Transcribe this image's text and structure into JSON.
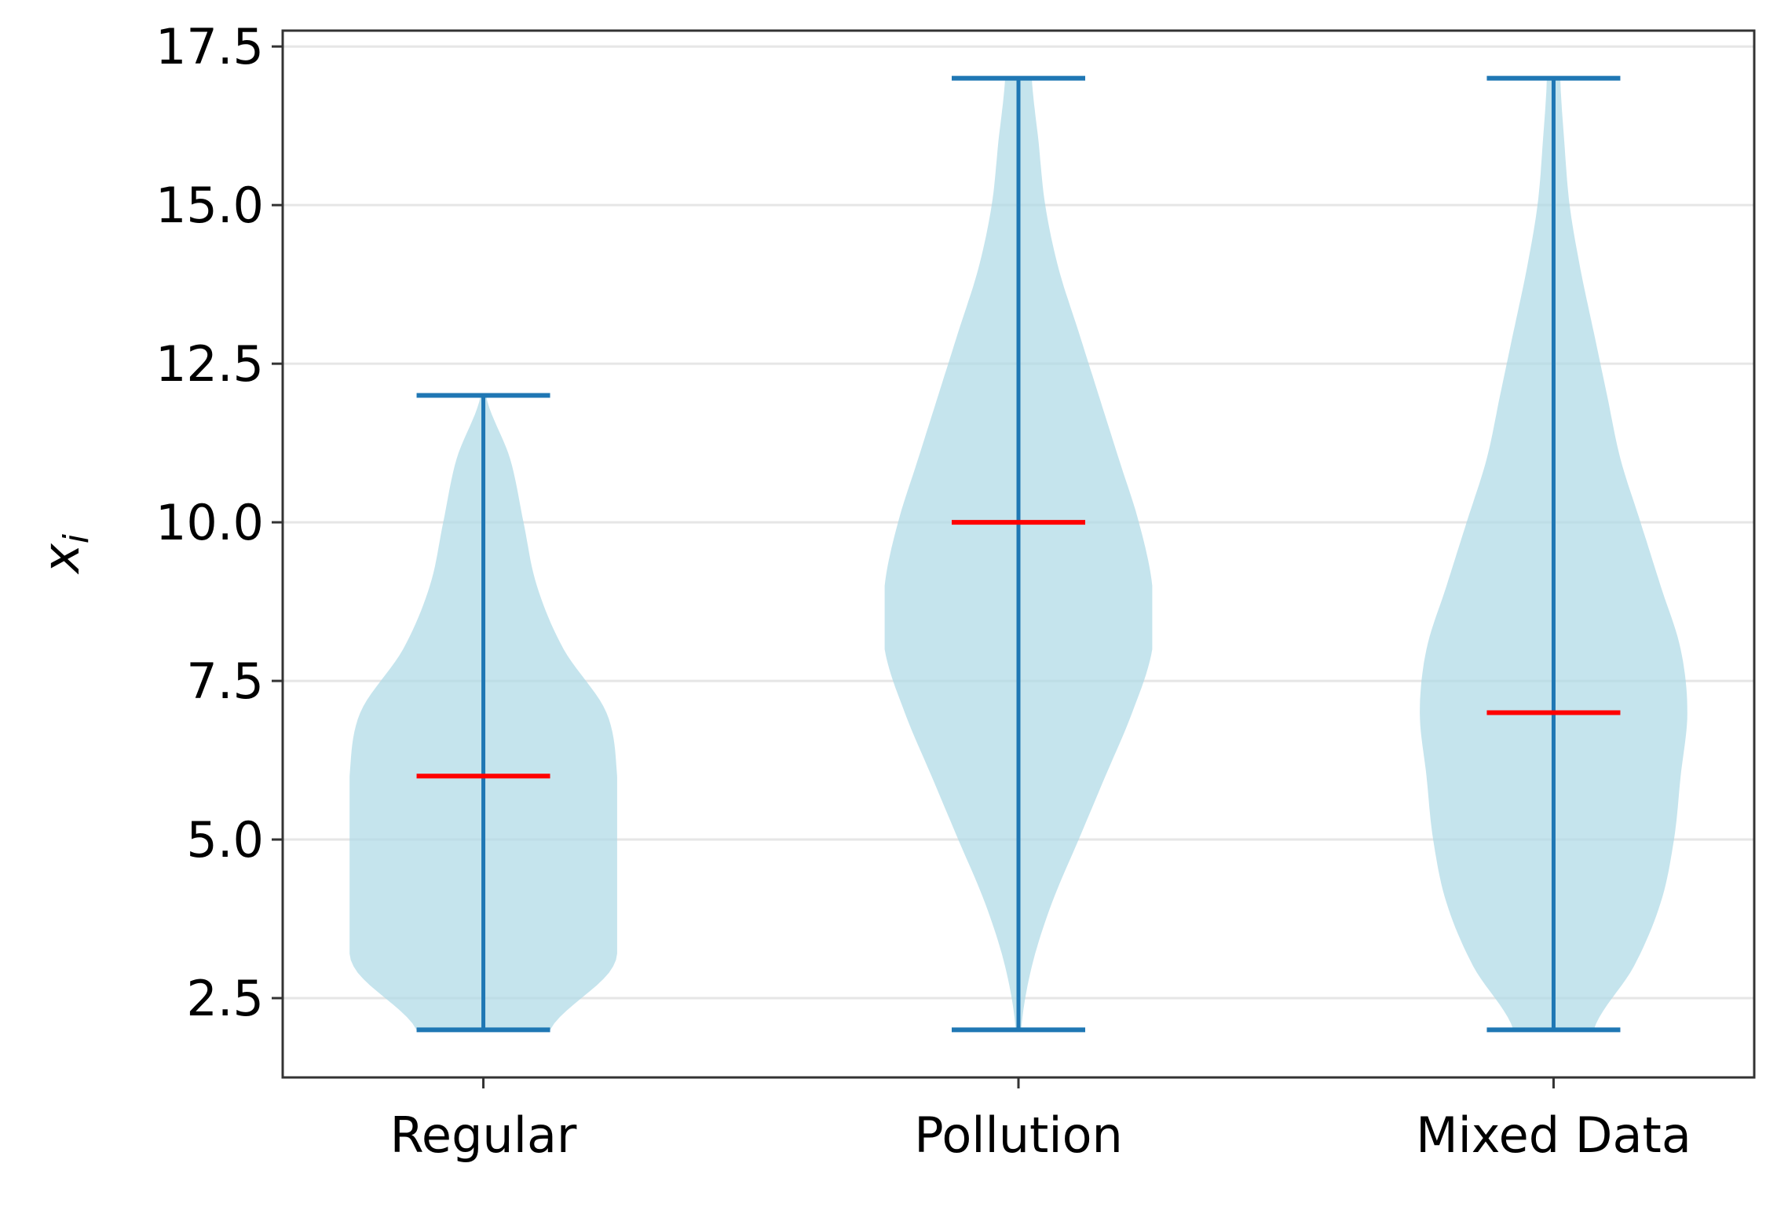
{
  "chart_data": {
    "type": "violin",
    "title": "",
    "xlabel": "",
    "ylabel": "x_i",
    "ylabel_main": "x",
    "ylabel_sub": "i",
    "categories": [
      "Regular",
      "Pollution",
      "Mixed Data"
    ],
    "ylim": [
      1.25,
      17.75
    ],
    "xlim": [
      0.625,
      3.375
    ],
    "yticks": [
      2.5,
      5.0,
      7.5,
      10.0,
      12.5,
      15.0,
      17.5
    ],
    "ytick_labels": [
      "2.5",
      "5.0",
      "7.5",
      "10.0",
      "12.5",
      "15.0",
      "17.5"
    ],
    "grid": "horizontal",
    "series": [
      {
        "category": "Regular",
        "min": 2,
        "max": 12,
        "median": 6,
        "density_y": [
          2,
          3,
          4,
          5,
          6,
          7,
          8,
          9,
          10,
          11,
          12
        ],
        "density_rel_width": [
          0.5,
          0.97,
          1.0,
          1.0,
          1.0,
          0.92,
          0.6,
          0.4,
          0.3,
          0.2,
          0.02
        ]
      },
      {
        "category": "Pollution",
        "min": 2,
        "max": 17,
        "median": 10,
        "density_y": [
          2,
          3,
          4,
          5,
          6,
          7,
          8,
          9,
          10,
          11,
          12,
          13,
          14,
          15,
          16,
          17
        ],
        "density_rel_width": [
          0.02,
          0.1,
          0.25,
          0.45,
          0.65,
          0.85,
          1.0,
          1.0,
          0.9,
          0.75,
          0.6,
          0.45,
          0.3,
          0.2,
          0.15,
          0.1
        ]
      },
      {
        "category": "Mixed Data",
        "min": 2,
        "max": 17,
        "median": 7,
        "density_y": [
          2,
          3,
          4,
          5,
          6,
          7,
          8,
          9,
          10,
          11,
          12,
          13,
          14,
          15,
          16,
          17
        ],
        "density_rel_width": [
          0.3,
          0.6,
          0.8,
          0.9,
          0.95,
          1.0,
          0.95,
          0.8,
          0.65,
          0.5,
          0.4,
          0.3,
          0.2,
          0.12,
          0.08,
          0.05
        ]
      }
    ],
    "violin_width": 0.5,
    "colors": {
      "body": "#add8e6",
      "lines": "#1f77b4",
      "median": "#ff0000",
      "grid": "#e6e6e6",
      "axes": "#333333"
    }
  }
}
